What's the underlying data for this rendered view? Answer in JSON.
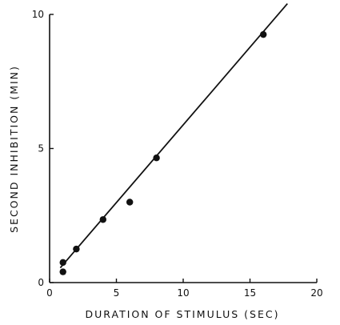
{
  "chart_data": {
    "type": "scatter",
    "title": "",
    "xlabel": "DURATION OF STIMULUS (SEC)",
    "ylabel": "SECOND INHIBITION (MIN)",
    "xlim": [
      0,
      20
    ],
    "ylim": [
      0,
      10
    ],
    "xticks": [
      0,
      5,
      10,
      15,
      20
    ],
    "yticks": [
      0,
      5,
      10
    ],
    "x_tick_labels": [
      "0",
      "5",
      "10",
      "15",
      "20"
    ],
    "y_tick_labels": [
      "0",
      "5",
      "10"
    ],
    "grid": false,
    "legend": "none",
    "series": [
      {
        "values_xy": [
          [
            1,
            0.4
          ],
          [
            1,
            0.75
          ],
          [
            2,
            1.25
          ],
          [
            4,
            2.35
          ],
          [
            6,
            3.0
          ],
          [
            8,
            4.65
          ],
          [
            16,
            9.25
          ]
        ]
      }
    ],
    "fit_line": {
      "x": [
        0.8,
        17.8
      ],
      "y": [
        0.55,
        10.4
      ]
    },
    "colors": {
      "ink": "#111111",
      "background": "#ffffff"
    }
  }
}
